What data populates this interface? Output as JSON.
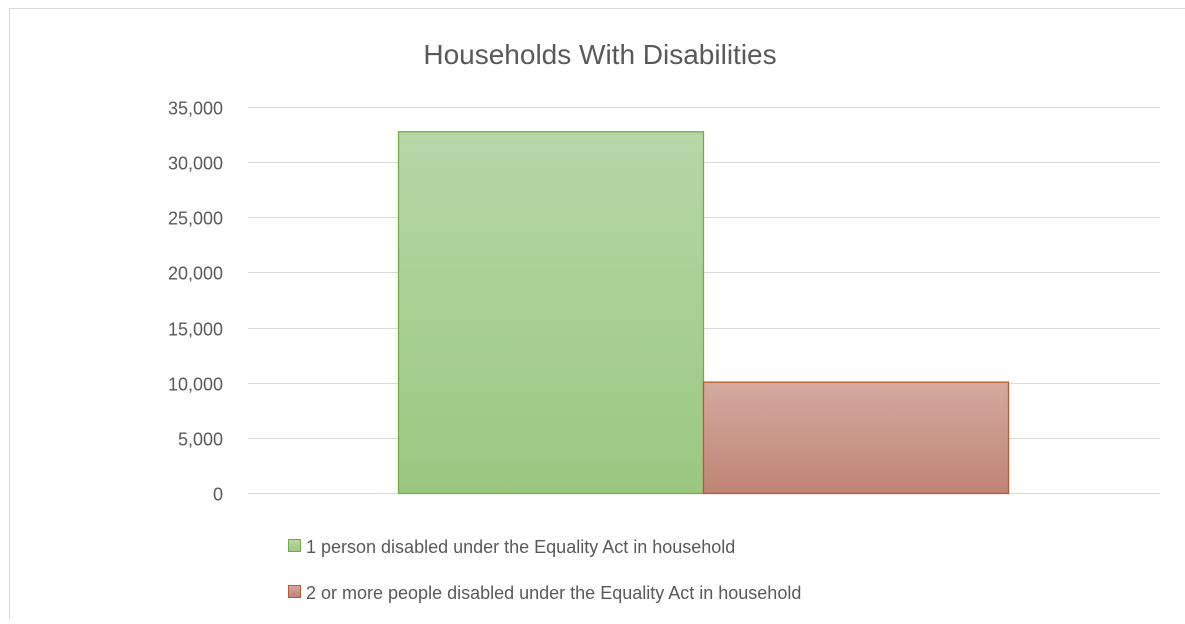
{
  "chart_data": {
    "type": "bar",
    "title": "Households With Disabilities",
    "xlabel": "",
    "ylabel": "",
    "ylim": [
      0,
      35000
    ],
    "yticks": [
      0,
      5000,
      10000,
      15000,
      20000,
      25000,
      30000,
      35000
    ],
    "ytick_labels": [
      "0",
      "5,000",
      "10,000",
      "15,000",
      "20,000",
      "25,000",
      "30,000",
      "35,000"
    ],
    "grid": true,
    "legend_position": "bottom",
    "series": [
      {
        "name": "1 person disabled under the Equality Act in household",
        "values": [
          32800
        ],
        "color": "#a9d18e",
        "edge": "#70ad47"
      },
      {
        "name": "2 or more people disabled under the Equality Act in household",
        "values": [
          10100
        ],
        "color": "#c8907f",
        "edge": "#c0582f"
      }
    ]
  }
}
